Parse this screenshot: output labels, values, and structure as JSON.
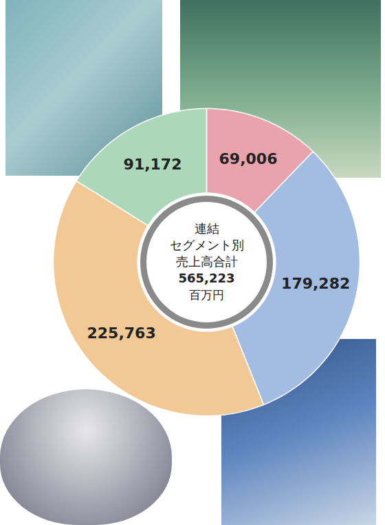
{
  "chart_data": {
    "type": "donut",
    "center_text": [
      "連結",
      "セグメント別",
      "売上高合計"
    ],
    "total": 565223,
    "total_label": "565,223",
    "unit": "百万円",
    "values": [
      69006,
      179282,
      225763,
      91172
    ],
    "value_labels": [
      "69,006",
      "179,282",
      "225,763",
      "91,172"
    ],
    "colors": [
      "#e9a3ad",
      "#a3bde2",
      "#f2c994",
      "#acd7b8"
    ],
    "data_labels": true,
    "tick_labels": false
  }
}
